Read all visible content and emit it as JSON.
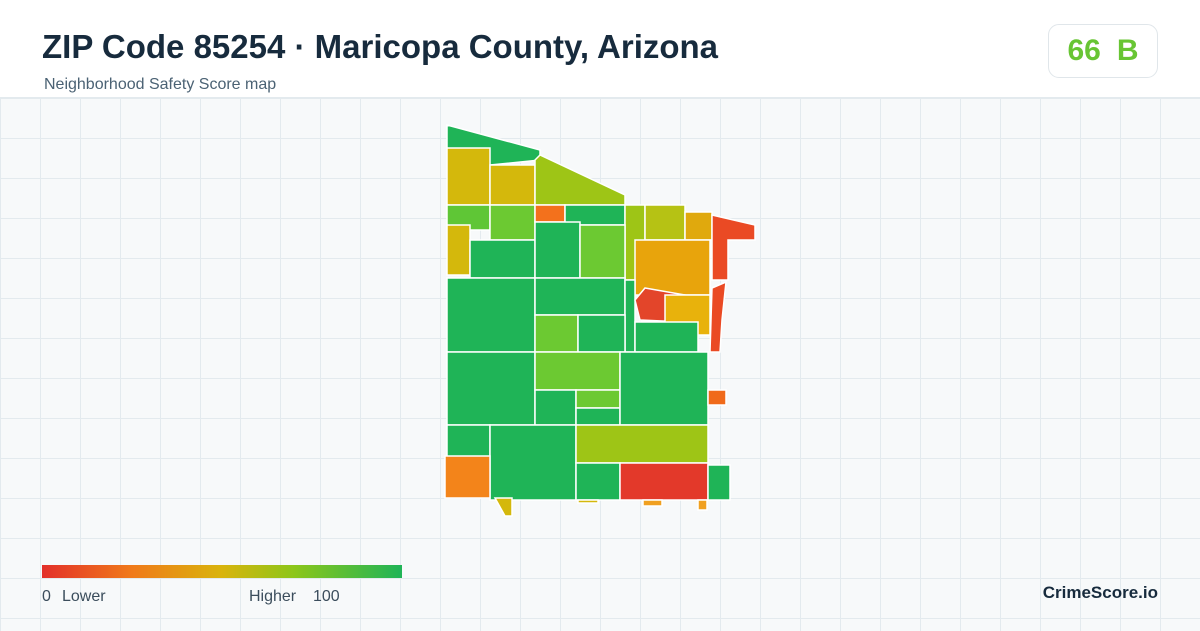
{
  "header": {
    "title": "ZIP Code 85254 · Maricopa County, Arizona",
    "subtitle": "Neighborhood Safety Score map"
  },
  "badge": {
    "score": 66,
    "grade": "B"
  },
  "legend": {
    "min": 0,
    "min_label": "Lower",
    "max_label": "Higher",
    "max": 100
  },
  "brand": "CrimeScore.io"
}
